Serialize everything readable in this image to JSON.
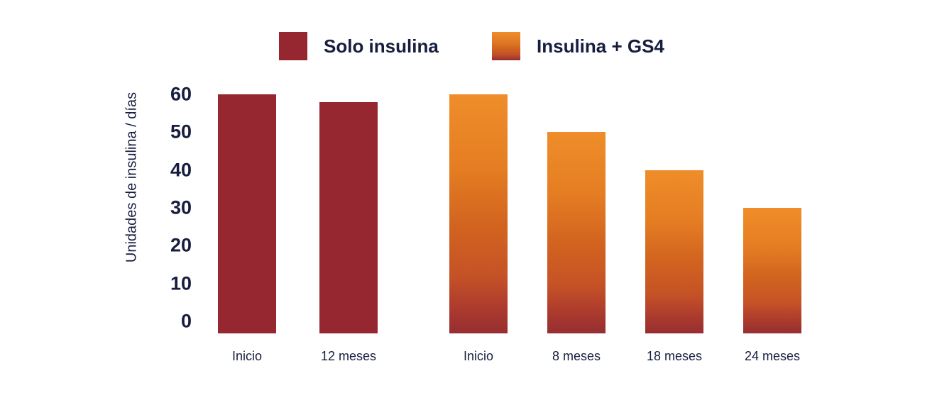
{
  "chart_data": {
    "type": "bar",
    "title": "",
    "ylabel": "Unidades de insulina / días",
    "xlabel": "",
    "ylim": [
      0,
      60
    ],
    "yticks": [
      60,
      50,
      40,
      30,
      20,
      10,
      0
    ],
    "grid": false,
    "legend_position": "top",
    "legend": [
      {
        "name": "Solo insulina",
        "swatch": "solid-dark-red"
      },
      {
        "name": "Insulina + GS4",
        "swatch": "orange-red-gradient"
      }
    ],
    "categories": [
      "Inicio",
      "12 meses",
      "Inicio",
      "8 meses",
      "18 meses",
      "24 meses"
    ],
    "bars": [
      {
        "category": "Inicio",
        "value": 60,
        "series": "Solo insulina"
      },
      {
        "category": "12 meses",
        "value": 58,
        "series": "Solo insulina"
      },
      {
        "category": "Inicio",
        "value": 60,
        "series": "Insulina + GS4"
      },
      {
        "category": "8 meses",
        "value": 50,
        "series": "Insulina + GS4"
      },
      {
        "category": "18 meses",
        "value": 40,
        "series": "Insulina + GS4"
      },
      {
        "category": "24 meses",
        "value": 30,
        "series": "Insulina + GS4"
      }
    ],
    "series": [
      {
        "name": "Solo insulina",
        "values": [
          60,
          58,
          null,
          null,
          null,
          null
        ]
      },
      {
        "name": "Insulina + GS4",
        "values": [
          null,
          null,
          60,
          50,
          40,
          30
        ]
      }
    ],
    "colors": {
      "solo_insulina": "#96262f",
      "gs4_gradient_top": "#ef8d2a",
      "gs4_gradient_mid": "#d2641f",
      "gs4_gradient_bottom": "#962e31",
      "text": "#171d3f",
      "background": "#ffffff"
    }
  }
}
